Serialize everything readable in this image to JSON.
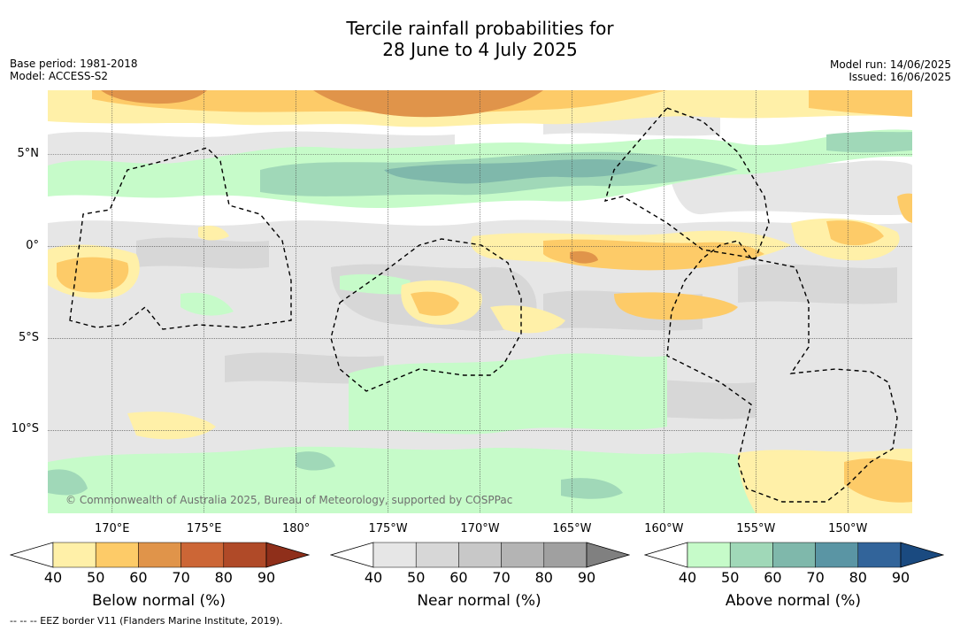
{
  "title": {
    "line1": "Tercile rainfall probabilities for",
    "line2": "28 June to 4 July 2025"
  },
  "meta": {
    "base_period": "Base period: 1981-2018",
    "model": "Model: ACCESS-S2",
    "model_run": "Model run: 14/06/2025",
    "issued": "Issued: 16/06/2025"
  },
  "map": {
    "copyright": "© Commonwealth of Australia 2025, Bureau of Meteorology, supported by COSPPac",
    "lat_ticks": [
      {
        "label": "5°N",
        "lat": 5
      },
      {
        "label": "0°",
        "lat": 0
      },
      {
        "label": "5°S",
        "lat": -5
      },
      {
        "label": "10°S",
        "lat": -10
      }
    ],
    "lon_ticks": [
      {
        "label": "170°E",
        "lon": 170
      },
      {
        "label": "175°E",
        "lon": 175
      },
      {
        "label": "180°",
        "lon": 180
      },
      {
        "label": "175°W",
        "lon": 185
      },
      {
        "label": "170°W",
        "lon": 190
      },
      {
        "label": "165°W",
        "lon": 195
      },
      {
        "label": "160°W",
        "lon": 200
      },
      {
        "label": "155°W",
        "lon": 205
      },
      {
        "label": "150°W",
        "lon": 210
      }
    ],
    "extent": {
      "lon_min": 166.5,
      "lon_max": 213.5,
      "lat_min": -14.5,
      "lat_max": 8.5
    }
  },
  "colorbars": [
    {
      "name": "below-normal",
      "label": "Below normal (%)",
      "ticks": [
        "40",
        "50",
        "60",
        "70",
        "80",
        "90"
      ],
      "colors": [
        "#fff0a8",
        "#fdcb68",
        "#e0944a",
        "#cc6636",
        "#b04a28",
        "#8f2f1a"
      ]
    },
    {
      "name": "near-normal",
      "label": "Near normal (%)",
      "ticks": [
        "40",
        "50",
        "60",
        "70",
        "80",
        "90"
      ],
      "colors": [
        "#e6e6e6",
        "#d7d7d7",
        "#c8c8c8",
        "#b4b4b4",
        "#a0a0a0",
        "#808080"
      ]
    },
    {
      "name": "above-normal",
      "label": "Above normal (%)",
      "ticks": [
        "40",
        "50",
        "60",
        "70",
        "80",
        "90"
      ],
      "colors": [
        "#c6fbc9",
        "#a0d8b8",
        "#7fb8ab",
        "#5a95a4",
        "#32649a",
        "#1a4a80"
      ]
    }
  ],
  "footnote": "-- -- -- EEZ border V11 (Flanders Marine Institute, 2019)."
}
